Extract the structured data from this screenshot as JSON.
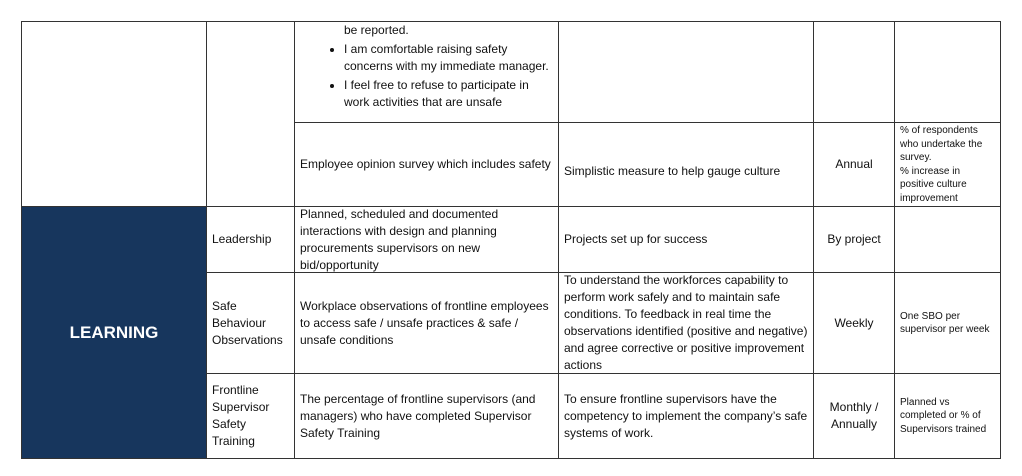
{
  "top_section": {
    "bullets": [
      {
        "text": "be reported.",
        "continuation": true
      },
      {
        "text": "I am comfortable raising safety concerns with my immediate manager.",
        "continuation": false
      },
      {
        "text": "I feel free to refuse to participate in work activities that are unsafe",
        "continuation": false
      }
    ],
    "survey_row": {
      "measure": "Employee opinion survey which includes safety",
      "purpose": "Simplistic measure to help gauge culture",
      "frequency": "Annual",
      "target_line1": "% of respondents who undertake the survey.",
      "target_line2": "% increase in positive culture improvement"
    }
  },
  "learning": {
    "category": "LEARNING",
    "colors": {
      "category_bg": "#17365d"
    },
    "rows": [
      {
        "element": "Leadership",
        "measure": "Planned, scheduled and documented interactions with design and planning procurements supervisors on new bid/opportunity",
        "purpose": "Projects set up for success",
        "frequency": "By project",
        "target": ""
      },
      {
        "element": "Safe Behaviour Observations",
        "measure": "Workplace observations of frontline employees to access safe / unsafe practices & safe / unsafe conditions",
        "purpose": "To understand the workforces capability to perform work safely and to maintain safe conditions. To feedback in real time the observations identified (positive and negative) and agree corrective or positive improvement actions",
        "frequency": "Weekly",
        "target": "One SBO per supervisor per week"
      },
      {
        "element": "Frontline Supervisor Safety Training",
        "measure": "The percentage of frontline supervisors (and managers) who have completed Supervisor Safety Training",
        "purpose": "To ensure frontline supervisors have the competency to implement the company’s safe systems of work.",
        "frequency": "Monthly / Annually",
        "target": "Planned vs completed or % of Supervisors trained"
      }
    ]
  }
}
